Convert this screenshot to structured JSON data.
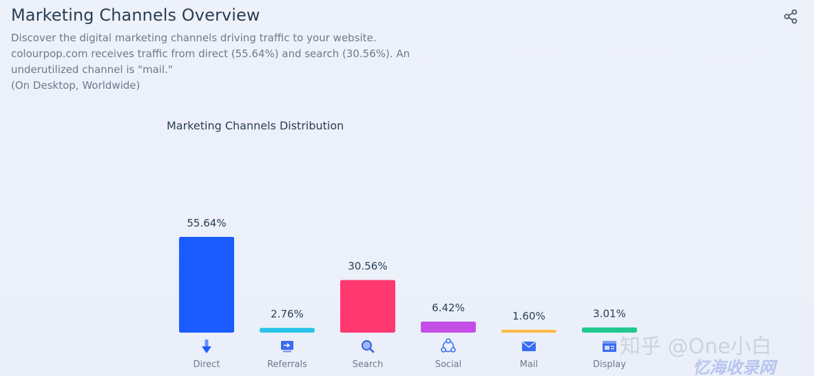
{
  "header": {
    "title": "Marketing Channels Overview",
    "share_icon": "share-icon"
  },
  "description": {
    "line1": "Discover the digital marketing channels driving traffic to your website.",
    "line2": "colourpop.com receives traffic from direct (55.64%) and search (30.56%). An",
    "line3": "underutilized channel is \"mail.\"",
    "line4": "(On Desktop, Worldwide)"
  },
  "chart_data": {
    "type": "bar",
    "title": "Marketing Channels Distribution",
    "categories": [
      "Direct",
      "Referrals",
      "Search",
      "Social",
      "Mail",
      "Display"
    ],
    "values": [
      55.64,
      2.76,
      30.56,
      6.42,
      1.6,
      3.01
    ],
    "value_labels": [
      "55.64%",
      "2.76%",
      "30.56%",
      "6.42%",
      "1.60%",
      "3.01%"
    ],
    "colors": [
      "#1a5cff",
      "#2bc4ea",
      "#ff3870",
      "#c44ee6",
      "#ffb941",
      "#1fc98e"
    ],
    "icons": [
      "arrow-down-icon",
      "referral-screen-icon",
      "search-icon",
      "social-share-icon",
      "mail-icon",
      "display-icon"
    ],
    "xlabel": "",
    "ylabel": "",
    "ylim": [
      0,
      55.64
    ],
    "grid": false,
    "legend": "none"
  },
  "watermark": {
    "line1": "知乎 @One小白",
    "line2": "忆海收录网"
  }
}
